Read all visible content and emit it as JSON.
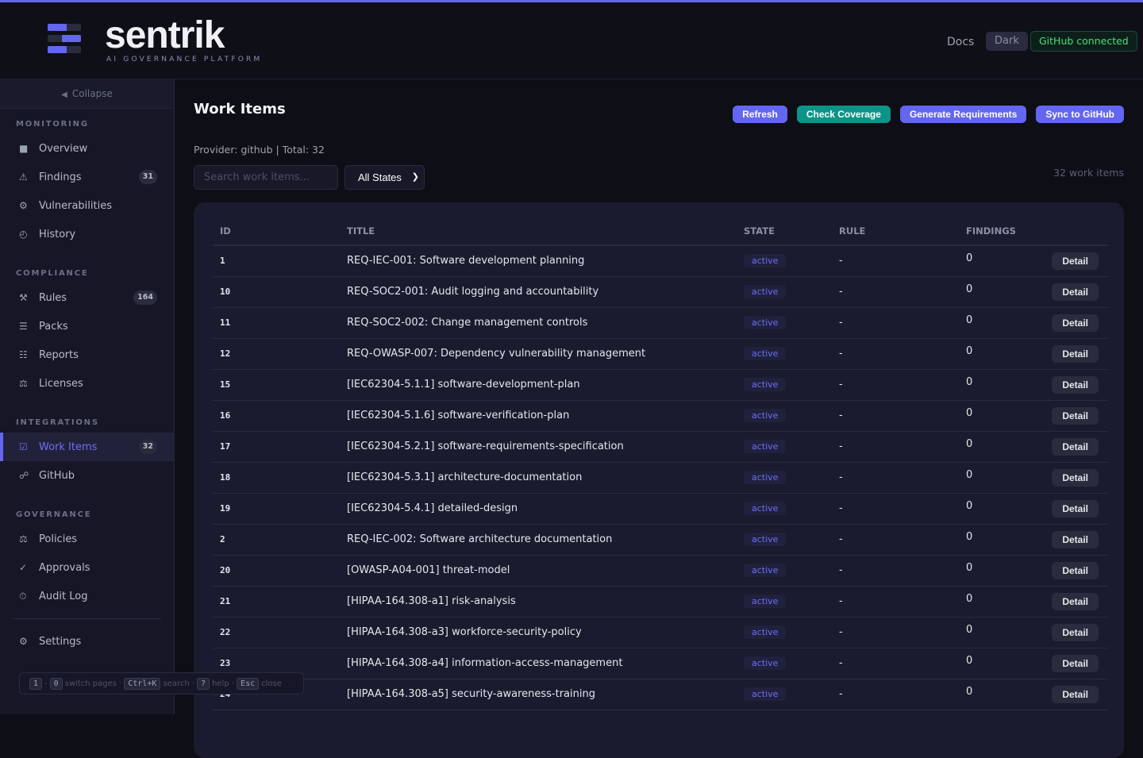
{
  "colors": {
    "accent": "#6366f1",
    "teal": "#0d9488",
    "success": "#4ade80"
  },
  "header": {
    "brand": "sentrik",
    "tagline": "AI GOVERNANCE PLATFORM",
    "docs": "Docs",
    "theme": "Dark",
    "github_status": "GitHub connected"
  },
  "sidebar": {
    "collapse": "Collapse",
    "sections": [
      {
        "title": "MONITORING",
        "items": [
          {
            "label": "Overview",
            "icon": "square-icon"
          },
          {
            "label": "Findings",
            "icon": "warning-icon",
            "badge": "31"
          },
          {
            "label": "Vulnerabilities",
            "icon": "gear-icon"
          },
          {
            "label": "History",
            "icon": "clock-icon"
          }
        ]
      },
      {
        "title": "COMPLIANCE",
        "items": [
          {
            "label": "Rules",
            "icon": "hammer-icon",
            "badge": "164"
          },
          {
            "label": "Packs",
            "icon": "list-icon"
          },
          {
            "label": "Reports",
            "icon": "report-icon"
          },
          {
            "label": "Licenses",
            "icon": "scale-icon"
          }
        ]
      },
      {
        "title": "INTEGRATIONS",
        "items": [
          {
            "label": "Work Items",
            "icon": "checkbox-icon",
            "badge": "32",
            "active": true
          },
          {
            "label": "GitHub",
            "icon": "link-icon"
          }
        ]
      },
      {
        "title": "GOVERNANCE",
        "items": [
          {
            "label": "Policies",
            "icon": "scale-icon"
          },
          {
            "label": "Approvals",
            "icon": "check-icon"
          },
          {
            "label": "Audit Log",
            "icon": "stopwatch-icon"
          }
        ]
      }
    ],
    "settings": "Settings"
  },
  "main": {
    "title": "Work Items",
    "actions": [
      "Refresh",
      "Check Coverage",
      "Generate Requirements",
      "Sync to GitHub"
    ],
    "provider": "Provider: github | Total: 32",
    "search_placeholder": "Search work items...",
    "state_filter": "All States",
    "count": "32 work items",
    "columns": [
      "ID",
      "TITLE",
      "STATE",
      "RULE",
      "FINDINGS"
    ],
    "detail_label": "Detail",
    "rows": [
      {
        "id": "1",
        "title": "REQ-IEC-001: Software development planning",
        "state": "active",
        "rule": "-",
        "findings": "0"
      },
      {
        "id": "10",
        "title": "REQ-SOC2-001: Audit logging and accountability",
        "state": "active",
        "rule": "-",
        "findings": "0"
      },
      {
        "id": "11",
        "title": "REQ-SOC2-002: Change management controls",
        "state": "active",
        "rule": "-",
        "findings": "0"
      },
      {
        "id": "12",
        "title": "REQ-OWASP-007: Dependency vulnerability management",
        "state": "active",
        "rule": "-",
        "findings": "0"
      },
      {
        "id": "15",
        "title": "[IEC62304-5.1.1] software-development-plan",
        "state": "active",
        "rule": "-",
        "findings": "0"
      },
      {
        "id": "16",
        "title": "[IEC62304-5.1.6] software-verification-plan",
        "state": "active",
        "rule": "-",
        "findings": "0"
      },
      {
        "id": "17",
        "title": "[IEC62304-5.2.1] software-requirements-specification",
        "state": "active",
        "rule": "-",
        "findings": "0"
      },
      {
        "id": "18",
        "title": "[IEC62304-5.3.1] architecture-documentation",
        "state": "active",
        "rule": "-",
        "findings": "0"
      },
      {
        "id": "19",
        "title": "[IEC62304-5.4.1] detailed-design",
        "state": "active",
        "rule": "-",
        "findings": "0"
      },
      {
        "id": "2",
        "title": "REQ-IEC-002: Software architecture documentation",
        "state": "active",
        "rule": "-",
        "findings": "0"
      },
      {
        "id": "20",
        "title": "[OWASP-A04-001] threat-model",
        "state": "active",
        "rule": "-",
        "findings": "0"
      },
      {
        "id": "21",
        "title": "[HIPAA-164.308-a1] risk-analysis",
        "state": "active",
        "rule": "-",
        "findings": "0"
      },
      {
        "id": "22",
        "title": "[HIPAA-164.308-a3] workforce-security-policy",
        "state": "active",
        "rule": "-",
        "findings": "0"
      },
      {
        "id": "23",
        "title": "[HIPAA-164.308-a4] information-access-management",
        "state": "active",
        "rule": "-",
        "findings": "0"
      },
      {
        "id": "24",
        "title": "[HIPAA-164.308-a5] security-awareness-training",
        "state": "active",
        "rule": "-",
        "findings": "0"
      }
    ]
  },
  "hints": {
    "k1": "1",
    "k2": "0",
    "t1": "switch pages ·",
    "k3": "Ctrl+K",
    "t2": "search ·",
    "k4": "?",
    "t3": "help ·",
    "k5": "Esc",
    "t4": "close"
  }
}
